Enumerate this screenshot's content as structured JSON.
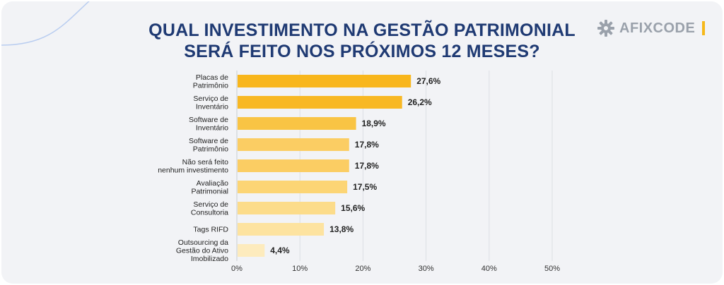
{
  "header": {
    "title_line1": "QUAL INVESTIMENTO NA GESTÃO PATRIMONIAL",
    "title_line2": "SERÁ FEITO NOS PRÓXIMOS 12 MESES?"
  },
  "brand": {
    "logo_text": "AFIXCODE",
    "logo_icon": "gear-icon",
    "accent_color": "#f6b81a"
  },
  "chart_data": {
    "type": "bar",
    "orientation": "horizontal",
    "title": "QUAL INVESTIMENTO NA GESTÃO PATRIMONIAL SERÁ FEITO NOS PRÓXIMOS 12 MESES?",
    "categories": [
      [
        "Placas de",
        "Patrimônio"
      ],
      [
        "Serviço de",
        "Inventário"
      ],
      [
        "Software de",
        "Inventário"
      ],
      [
        "Software de",
        "Patrimônio"
      ],
      [
        "Não será feito",
        "nenhum investimento"
      ],
      [
        "Avaliação",
        "Patrimonial"
      ],
      [
        "Serviço de",
        "Consultoria"
      ],
      [
        "Tags RIFD"
      ],
      [
        "Outsourcing da",
        "Gestão do Ativo",
        "Imobilizado"
      ]
    ],
    "values": [
      27.6,
      26.2,
      18.9,
      17.8,
      17.8,
      17.5,
      15.6,
      13.8,
      4.4
    ],
    "value_labels": [
      "27,6%",
      "26,2%",
      "18,9%",
      "17,8%",
      "17,8%",
      "17,5%",
      "15,6%",
      "13,8%",
      "4,4%"
    ],
    "bar_colors": [
      "#f8b61c",
      "#f8b824",
      "#f9c444",
      "#fbcd63",
      "#fbcd63",
      "#fcd575",
      "#fcdc8a",
      "#fde3a0",
      "#fdebbd"
    ],
    "xlim": [
      0,
      50
    ],
    "x_ticks": [
      0,
      10,
      20,
      30,
      40,
      50
    ],
    "x_tick_labels": [
      "0%",
      "10%",
      "20%",
      "30%",
      "40%",
      "50%"
    ],
    "grid": true,
    "legend": "none"
  }
}
